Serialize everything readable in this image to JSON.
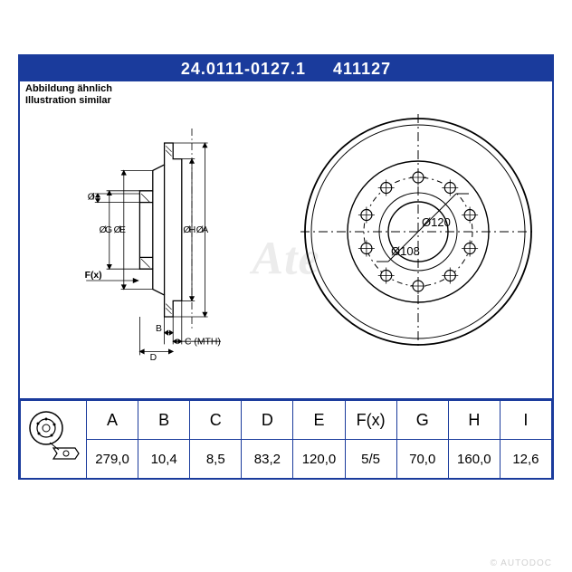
{
  "header": {
    "part_no": "24.0111-0127.1",
    "short_no": "411127",
    "subtitle_de": "Abbildung ähnlich",
    "subtitle_en": "Illustration similar"
  },
  "colors": {
    "frame": "#1a3b9c",
    "bg": "#ffffff",
    "text": "#000000",
    "watermark": "rgba(150,150,150,0.18)"
  },
  "watermark": "Ate",
  "footer": "© AUTODOC",
  "cross_section_labels": {
    "I": "I",
    "G": "G",
    "E": "E",
    "H": "H",
    "A": "A",
    "F": "F(x)",
    "B": "B",
    "C": "C (MTH)",
    "D": "D"
  },
  "front_view": {
    "outer_dia_label": "Ø120",
    "inner_dia_label": "Ø108",
    "bolt_count": 10
  },
  "table": {
    "columns": [
      "A",
      "B",
      "C",
      "D",
      "E",
      "F(x)",
      "G",
      "H",
      "I"
    ],
    "values": [
      "279,0",
      "10,4",
      "8,5",
      "83,2",
      "120,0",
      "5/5",
      "70,0",
      "160,0",
      "12,6"
    ],
    "col_widths_pct": [
      10,
      10,
      10,
      10,
      10,
      10,
      10,
      10,
      10
    ]
  }
}
